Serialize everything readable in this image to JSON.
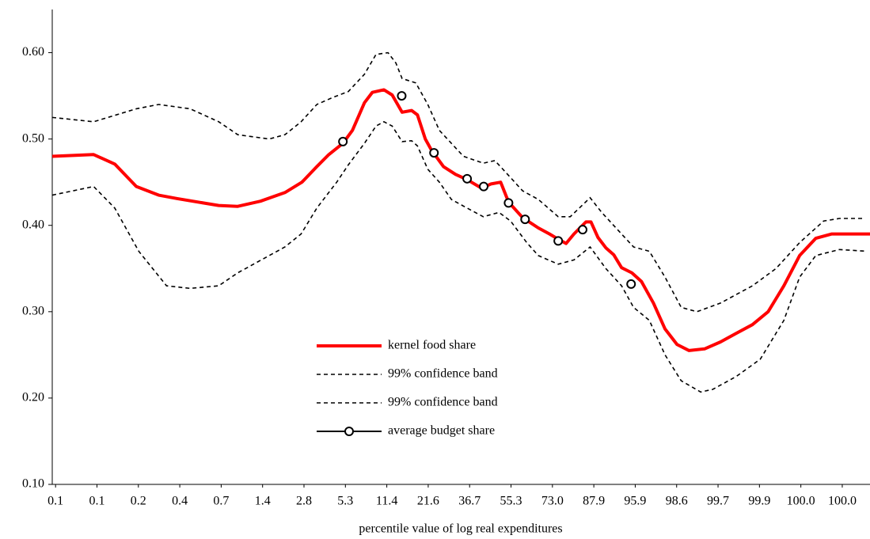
{
  "chart_data": {
    "type": "line",
    "x_label": "percentile value of log real expenditures",
    "xlim": [
      -0.08,
      19.67
    ],
    "xticks": [
      {
        "value": 0,
        "label": "0.1"
      },
      {
        "value": 1,
        "label": "0.1"
      },
      {
        "value": 2,
        "label": "0.2"
      },
      {
        "value": 3,
        "label": "0.4"
      },
      {
        "value": 4,
        "label": "0.7"
      },
      {
        "value": 5,
        "label": "1.4"
      },
      {
        "value": 6,
        "label": "2.8"
      },
      {
        "value": 7,
        "label": "5.3"
      },
      {
        "value": 8,
        "label": "11.4"
      },
      {
        "value": 9,
        "label": "21.6"
      },
      {
        "value": 10,
        "label": "36.7"
      },
      {
        "value": 11,
        "label": "55.3"
      },
      {
        "value": 12,
        "label": "73.0"
      },
      {
        "value": 13,
        "label": "87.9"
      },
      {
        "value": 14,
        "label": "95.9"
      },
      {
        "value": 15,
        "label": "98.6"
      },
      {
        "value": 16,
        "label": "99.7"
      },
      {
        "value": 17,
        "label": "99.9"
      },
      {
        "value": 18,
        "label": "100.0"
      },
      {
        "value": 19,
        "label": "100.0"
      }
    ],
    "ylim": [
      0.1,
      0.65
    ],
    "yticks": [
      {
        "value": 0.1,
        "label": "0.10"
      },
      {
        "value": 0.2,
        "label": "0.20"
      },
      {
        "value": 0.3,
        "label": "0.30"
      },
      {
        "value": 0.4,
        "label": "0.40"
      },
      {
        "value": 0.5,
        "label": "0.50"
      },
      {
        "value": 0.6,
        "label": "0.60"
      }
    ],
    "grid": false,
    "series": [
      {
        "name": "kernel food share",
        "color": "#ff0000",
        "style": "solid",
        "x": [
          -0.08,
          0.92,
          1.43,
          1.95,
          2.49,
          2.94,
          3.94,
          4.4,
          4.95,
          5.54,
          5.95,
          6.31,
          6.6,
          6.94,
          7.17,
          7.46,
          7.65,
          7.93,
          8.13,
          8.37,
          8.6,
          8.74,
          8.93,
          9.08,
          9.37,
          9.66,
          9.94,
          10.29,
          10.52,
          10.75,
          10.94,
          11.28,
          11.66,
          11.93,
          12.14,
          12.33,
          12.52,
          12.81,
          12.93,
          13.1,
          13.29,
          13.48,
          13.67,
          13.92,
          14.15,
          14.44,
          14.72,
          15.01,
          15.3,
          15.68,
          16.06,
          16.44,
          16.83,
          17.21,
          17.59,
          17.97,
          18.36,
          18.74,
          19.22,
          19.67
        ],
        "values": [
          0.48,
          0.482,
          0.471,
          0.445,
          0.435,
          0.431,
          0.423,
          0.422,
          0.428,
          0.438,
          0.45,
          0.468,
          0.482,
          0.495,
          0.51,
          0.542,
          0.554,
          0.557,
          0.551,
          0.531,
          0.533,
          0.528,
          0.5,
          0.487,
          0.468,
          0.459,
          0.453,
          0.443,
          0.448,
          0.45,
          0.427,
          0.409,
          0.397,
          0.39,
          0.384,
          0.379,
          0.39,
          0.404,
          0.404,
          0.386,
          0.374,
          0.366,
          0.351,
          0.345,
          0.335,
          0.31,
          0.28,
          0.262,
          0.255,
          0.257,
          0.265,
          0.275,
          0.285,
          0.3,
          0.33,
          0.365,
          0.385,
          0.39,
          0.39,
          0.39
        ]
      },
      {
        "name": "99% confidence band",
        "color": "#000000",
        "style": "dashed",
        "x": [
          -0.08,
          0.92,
          1.95,
          2.49,
          3.25,
          3.94,
          4.4,
          5.16,
          5.54,
          5.93,
          6.31,
          6.69,
          7.07,
          7.46,
          7.74,
          8.03,
          8.22,
          8.37,
          8.7,
          8.99,
          9.27,
          9.85,
          10.33,
          10.61,
          10.9,
          11.28,
          11.66,
          12.14,
          12.43,
          12.91,
          13.19,
          13.67,
          13.96,
          14.34,
          14.72,
          15.11,
          15.49,
          16.06,
          16.83,
          17.4,
          17.97,
          18.55,
          18.93,
          19.5
        ],
        "values": [
          0.525,
          0.52,
          0.535,
          0.54,
          0.535,
          0.52,
          0.505,
          0.5,
          0.505,
          0.52,
          0.54,
          0.548,
          0.555,
          0.575,
          0.598,
          0.6,
          0.588,
          0.57,
          0.565,
          0.54,
          0.51,
          0.48,
          0.472,
          0.475,
          0.46,
          0.44,
          0.43,
          0.41,
          0.41,
          0.432,
          0.415,
          0.39,
          0.375,
          0.37,
          0.34,
          0.305,
          0.3,
          0.31,
          0.33,
          0.35,
          0.38,
          0.405,
          0.408,
          0.408
        ]
      },
      {
        "name": "99% confidence band",
        "color": "#000000",
        "style": "dashed",
        "x": [
          -0.08,
          0.92,
          1.43,
          2.01,
          2.68,
          3.25,
          3.94,
          4.4,
          4.97,
          5.54,
          5.93,
          6.31,
          6.79,
          7.07,
          7.46,
          7.74,
          7.93,
          8.13,
          8.37,
          8.6,
          8.74,
          8.99,
          9.27,
          9.56,
          9.94,
          10.33,
          10.71,
          10.99,
          11.38,
          11.66,
          12.14,
          12.52,
          12.91,
          13.29,
          13.67,
          13.96,
          14.34,
          14.72,
          15.11,
          15.58,
          15.87,
          16.44,
          17.02,
          17.59,
          17.97,
          18.36,
          18.93,
          19.6
        ],
        "values": [
          0.435,
          0.445,
          0.42,
          0.37,
          0.33,
          0.327,
          0.33,
          0.345,
          0.36,
          0.375,
          0.39,
          0.42,
          0.45,
          0.47,
          0.495,
          0.515,
          0.52,
          0.515,
          0.497,
          0.498,
          0.492,
          0.465,
          0.45,
          0.43,
          0.42,
          0.41,
          0.415,
          0.405,
          0.38,
          0.365,
          0.355,
          0.36,
          0.375,
          0.35,
          0.33,
          0.305,
          0.29,
          0.25,
          0.22,
          0.207,
          0.21,
          0.225,
          0.245,
          0.29,
          0.34,
          0.365,
          0.372,
          0.37
        ]
      },
      {
        "name": "average budget share",
        "color": "#000000",
        "style": "markers",
        "x": [
          6.94,
          8.36,
          9.14,
          9.94,
          10.34,
          10.94,
          11.34,
          12.14,
          12.73,
          13.9
        ],
        "values": [
          0.497,
          0.55,
          0.484,
          0.454,
          0.445,
          0.426,
          0.407,
          0.382,
          0.395,
          0.332
        ]
      }
    ]
  }
}
